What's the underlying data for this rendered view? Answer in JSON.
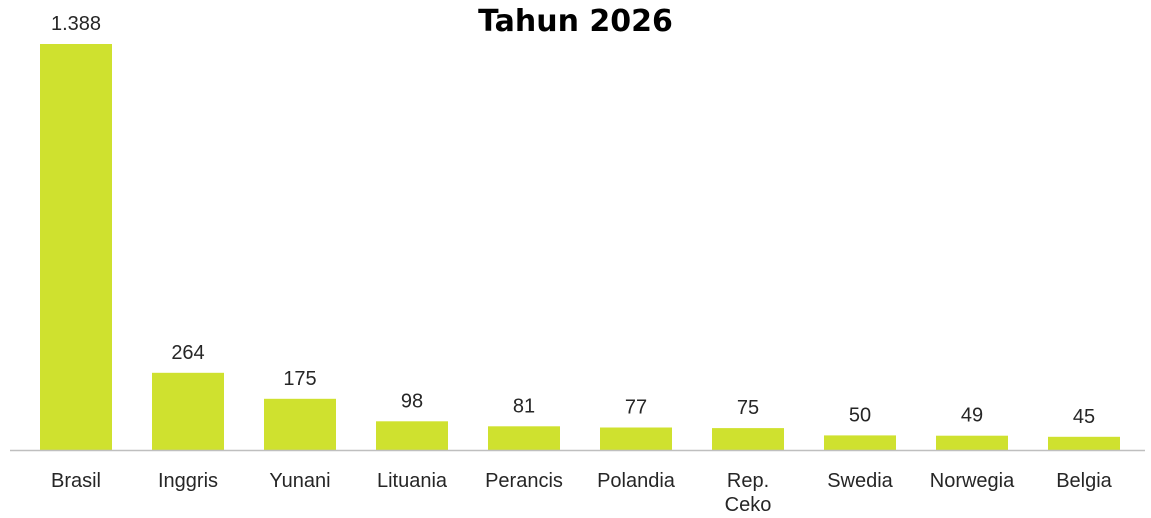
{
  "chart_data": {
    "type": "bar",
    "title": "Tahun 2026",
    "xlabel": "",
    "ylabel": "",
    "categories": [
      "Brasil",
      "Inggris",
      "Yunani",
      "Lituania",
      "Perancis",
      "Polandia",
      "Rep. Ceko",
      "Swedia",
      "Norwegia",
      "Belgia"
    ],
    "values": [
      1388,
      264,
      175,
      98,
      81,
      77,
      75,
      50,
      49,
      45
    ],
    "value_labels": [
      "1.388",
      "264",
      "175",
      "98",
      "81",
      "77",
      "75",
      "50",
      "49",
      "45"
    ],
    "ylim": [
      0,
      1388
    ],
    "grid": false,
    "legend": "none",
    "bar_color": "#cfe12f",
    "axis_color": "#bfbfbf"
  }
}
